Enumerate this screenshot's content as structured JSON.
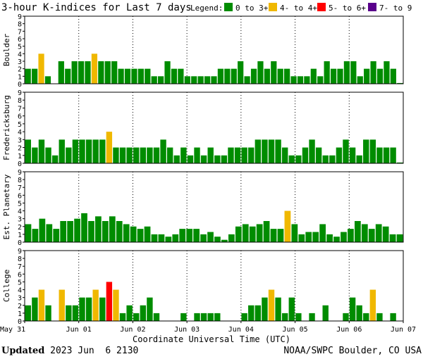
{
  "title": "3-hour K-indices for Last 7 days",
  "legend": {
    "label": "Legend:",
    "entries": [
      {
        "label": "0 to 3+",
        "color": "#008c00"
      },
      {
        "label": "4- to 4+",
        "color": "#f0b800"
      },
      {
        "label": "5- to 6+",
        "color": "#ff0000"
      },
      {
        "label": "7- to 9",
        "color": "#5a008c"
      }
    ]
  },
  "footer": {
    "updated_label": "Updated",
    "updated_value": " 2023 Jun  6 2130",
    "credit": "NOAA/SWPC Boulder, CO USA"
  },
  "chart_data": [
    {
      "type": "bar",
      "ylabel": "Boulder",
      "ylim": [
        0,
        9
      ],
      "yticks": [
        "0",
        "1",
        "2",
        "3",
        "4",
        "5",
        "6",
        "7",
        "8",
        "9"
      ],
      "values": [
        2,
        2,
        4,
        1,
        0,
        3,
        2,
        3,
        3,
        3,
        4,
        3,
        3,
        3,
        2,
        2,
        2,
        2,
        2,
        1,
        1,
        3,
        2,
        2,
        1,
        1,
        1,
        1,
        1,
        2,
        2,
        2,
        3,
        1,
        2,
        3,
        2,
        3,
        2,
        2,
        1,
        1,
        1,
        2,
        1,
        3,
        2,
        2,
        3,
        3,
        1,
        2,
        3,
        2,
        3,
        2,
        0.1
      ]
    },
    {
      "type": "bar",
      "ylabel": "Fredericksburg",
      "ylim": [
        0,
        9
      ],
      "yticks": [
        "0",
        "1",
        "2",
        "3",
        "4",
        "5",
        "6",
        "7",
        "8",
        "9"
      ],
      "values": [
        3,
        2,
        3,
        2,
        1,
        3,
        2,
        3,
        3,
        3,
        3,
        3,
        4,
        2,
        2,
        2,
        2,
        2,
        2,
        2,
        3,
        2,
        1,
        2,
        1,
        2,
        1,
        2,
        1,
        1,
        2,
        2,
        2,
        2,
        3,
        3,
        3,
        3,
        2,
        1,
        1,
        2,
        3,
        2,
        1,
        1,
        2,
        3,
        2,
        1,
        3,
        3,
        2,
        2,
        2,
        0.1
      ]
    },
    {
      "type": "bar",
      "ylabel": "Est. Planetary",
      "ylim": [
        0,
        9
      ],
      "yticks": [
        "0",
        "1",
        "2",
        "3",
        "4",
        "5",
        "6",
        "7",
        "8",
        "9"
      ],
      "values": [
        2.3,
        1.7,
        3,
        2.3,
        1.7,
        2.7,
        2.7,
        3,
        3.7,
        2.7,
        3.3,
        2.7,
        3.3,
        2.7,
        2.3,
        2,
        1.7,
        2,
        1,
        1,
        0.7,
        1,
        1.7,
        1.7,
        1.7,
        1,
        1.3,
        0.7,
        0.3,
        1,
        2,
        2.3,
        2,
        2.3,
        2.7,
        1.7,
        1.7,
        4,
        2.3,
        1,
        1.3,
        1.3,
        2.3,
        1,
        0.7,
        1.3,
        1.7,
        2.7,
        2.3,
        1.7,
        2.3,
        2,
        1,
        1
      ]
    },
    {
      "type": "bar",
      "ylabel": "College",
      "ylim": [
        0,
        9
      ],
      "yticks": [
        "0",
        "1",
        "2",
        "3",
        "4",
        "5",
        "6",
        "7",
        "8",
        "9"
      ],
      "values": [
        2,
        3,
        4,
        2,
        0,
        4,
        2,
        2,
        3,
        3,
        4,
        3,
        5,
        4,
        1,
        2,
        1,
        2,
        3,
        1,
        0,
        0,
        0,
        1,
        0,
        1,
        1,
        1,
        1,
        0,
        0,
        0,
        1,
        2,
        2,
        3,
        4,
        3,
        1,
        3,
        1,
        0,
        1,
        0,
        2,
        0,
        0,
        1,
        3,
        2,
        1,
        4,
        1,
        0,
        1,
        0
      ]
    }
  ],
  "x_axis": {
    "label": "Coordinate Universal Time (UTC)",
    "ticks": [
      "May 31",
      "Jun 01",
      "Jun 02",
      "Jun 03",
      "Jun 04",
      "Jun 05",
      "Jun 06",
      "Jun 07"
    ]
  }
}
